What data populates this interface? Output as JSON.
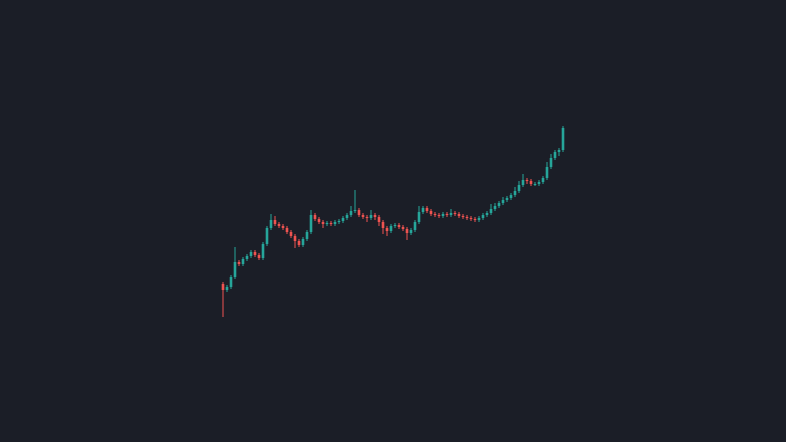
{
  "chart_data": {
    "type": "candlestick",
    "up_color": "#26a69a",
    "down_color": "#ef5350",
    "open": [
      158,
      152,
      155,
      165,
      180,
      178,
      183,
      186,
      190,
      187,
      184,
      198,
      214,
      222,
      218,
      216,
      214,
      210,
      206,
      201,
      197,
      203,
      210,
      227,
      223,
      220,
      218,
      219,
      218,
      220,
      221,
      224,
      227,
      231,
      232,
      227,
      225,
      224,
      227,
      225,
      220,
      214,
      211,
      216,
      217,
      215,
      213,
      209,
      212,
      220,
      230,
      234,
      231,
      228,
      227,
      226,
      228,
      227,
      229,
      228,
      226,
      225,
      224,
      223,
      222,
      224,
      227,
      229,
      233,
      236,
      239,
      242,
      244,
      247,
      251,
      257,
      262,
      261,
      258,
      258,
      260,
      264,
      275,
      284,
      290,
      292
    ],
    "high": [
      160,
      157,
      167,
      195,
      182,
      185,
      188,
      192,
      192,
      189,
      200,
      216,
      228,
      226,
      220,
      218,
      216,
      212,
      208,
      203,
      205,
      212,
      232,
      229,
      225,
      222,
      221,
      221,
      222,
      223,
      226,
      229,
      236,
      252,
      234,
      229,
      227,
      232,
      229,
      227,
      222,
      216,
      218,
      219,
      219,
      217,
      215,
      214,
      222,
      236,
      236,
      236,
      233,
      230,
      229,
      230,
      230,
      233,
      231,
      230,
      228,
      227,
      226,
      225,
      226,
      229,
      231,
      238,
      239,
      241,
      245,
      246,
      249,
      255,
      261,
      268,
      264,
      263,
      260,
      262,
      266,
      280,
      288,
      292,
      294,
      316
    ],
    "low": [
      125,
      150,
      153,
      163,
      176,
      176,
      181,
      184,
      185,
      182,
      182,
      196,
      212,
      216,
      214,
      212,
      208,
      204,
      194,
      195,
      195,
      201,
      208,
      221,
      218,
      214,
      216,
      216,
      216,
      218,
      219,
      222,
      225,
      229,
      225,
      223,
      220,
      222,
      222,
      216,
      208,
      206,
      209,
      214,
      213,
      211,
      202,
      207,
      210,
      218,
      228,
      229,
      226,
      225,
      224,
      224,
      225,
      225,
      226,
      224,
      223,
      222,
      221,
      220,
      220,
      222,
      225,
      227,
      231,
      234,
      237,
      240,
      242,
      245,
      249,
      255,
      258,
      256,
      256,
      256,
      258,
      262,
      273,
      282,
      286,
      290
    ],
    "close": [
      152,
      155,
      165,
      180,
      178,
      183,
      186,
      190,
      187,
      184,
      198,
      214,
      222,
      218,
      216,
      214,
      210,
      206,
      201,
      197,
      203,
      210,
      227,
      223,
      220,
      218,
      219,
      218,
      220,
      221,
      224,
      227,
      231,
      232,
      227,
      225,
      224,
      227,
      225,
      220,
      214,
      211,
      216,
      217,
      215,
      213,
      209,
      212,
      220,
      230,
      234,
      231,
      228,
      227,
      226,
      228,
      227,
      229,
      228,
      226,
      225,
      224,
      223,
      222,
      224,
      227,
      229,
      233,
      236,
      239,
      242,
      244,
      247,
      251,
      257,
      262,
      261,
      258,
      258,
      260,
      264,
      275,
      284,
      290,
      292,
      314
    ]
  }
}
